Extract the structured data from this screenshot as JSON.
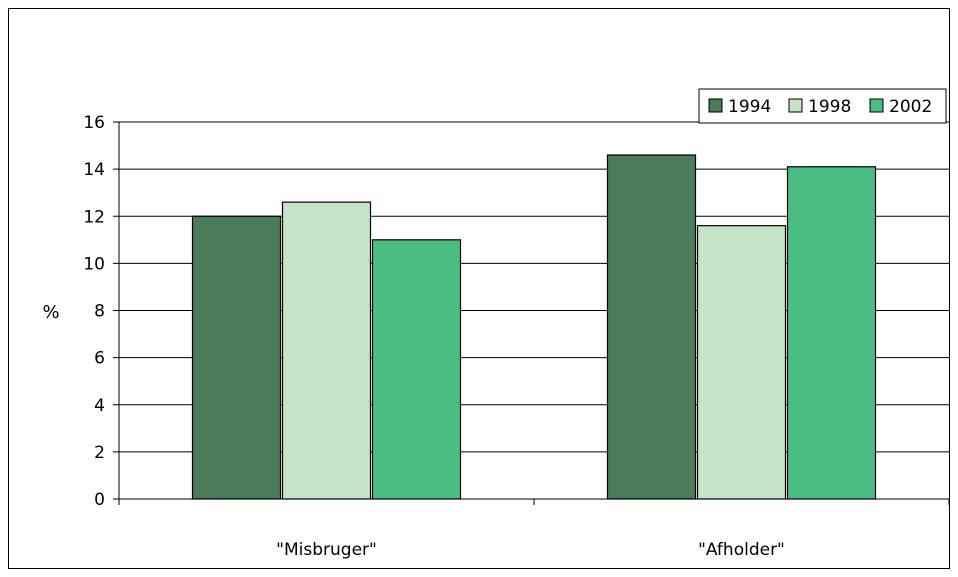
{
  "chart_data": {
    "type": "bar",
    "categories": [
      "\"Misbruger\"",
      "\"Afholder\""
    ],
    "series": [
      {
        "name": "1994",
        "values": [
          12.0,
          14.6
        ],
        "color": "#4a7c59"
      },
      {
        "name": "1998",
        "values": [
          12.6,
          11.6
        ],
        "color": "#c4e3c7"
      },
      {
        "name": "2002",
        "values": [
          11.0,
          14.1
        ],
        "color": "#4bbd83"
      }
    ],
    "ylabel": "%",
    "ylim": [
      0,
      16
    ],
    "yticks": [
      0,
      2,
      4,
      6,
      8,
      10,
      12,
      14,
      16
    ],
    "grid": true,
    "legend_position": "top-right"
  }
}
